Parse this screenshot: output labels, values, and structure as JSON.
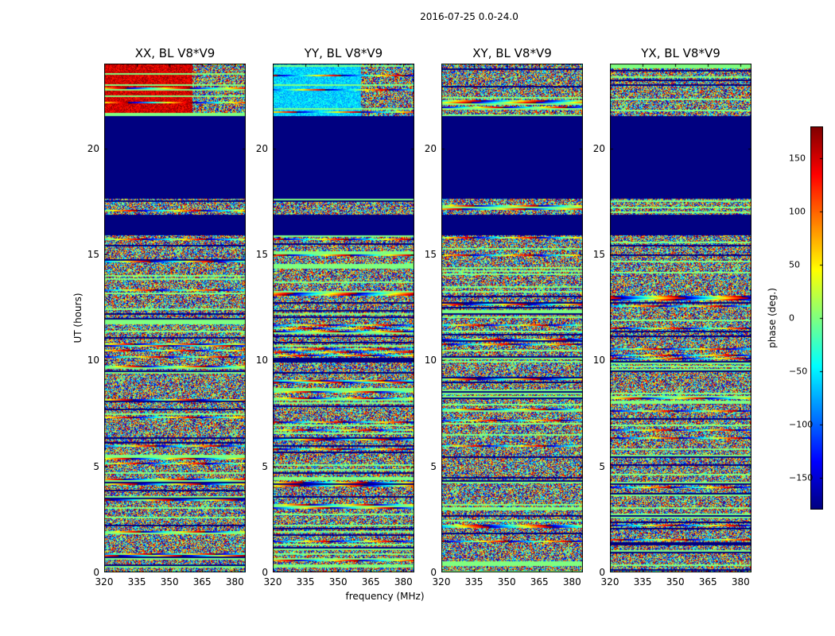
{
  "chart_data": {
    "type": "heatmap",
    "title": "2016-07-25 0.0-24.0",
    "xlabel": "frequency (MHz)",
    "ylabel": "UT (hours)",
    "xlim": [
      320,
      385
    ],
    "ylim": [
      0,
      24
    ],
    "xticks": [
      "320",
      "335",
      "350",
      "365",
      "380"
    ],
    "yticks": [
      "0",
      "5",
      "10",
      "15",
      "20"
    ],
    "panels": [
      {
        "title": "XX, BL V8*V9",
        "pol": "XX"
      },
      {
        "title": "YY, BL V8*V9",
        "pol": "YY"
      },
      {
        "title": "XY, BL V8*V9",
        "pol": "XY"
      },
      {
        "title": "YX, BL V8*V9",
        "pol": "YX"
      }
    ],
    "colorbar": {
      "label": "phase (deg.)",
      "range": [
        -180,
        180
      ],
      "ticks": [
        "150",
        "100",
        "50",
        "0",
        "−50",
        "−100",
        "−150"
      ],
      "tick_values": [
        150,
        100,
        50,
        0,
        -50,
        -100,
        -150
      ],
      "colormap": "jet"
    },
    "flagged_intervals_hours": [
      [
        17.6,
        21.5
      ],
      [
        15.9,
        16.9
      ]
    ],
    "flag_value_deg": -180
  }
}
